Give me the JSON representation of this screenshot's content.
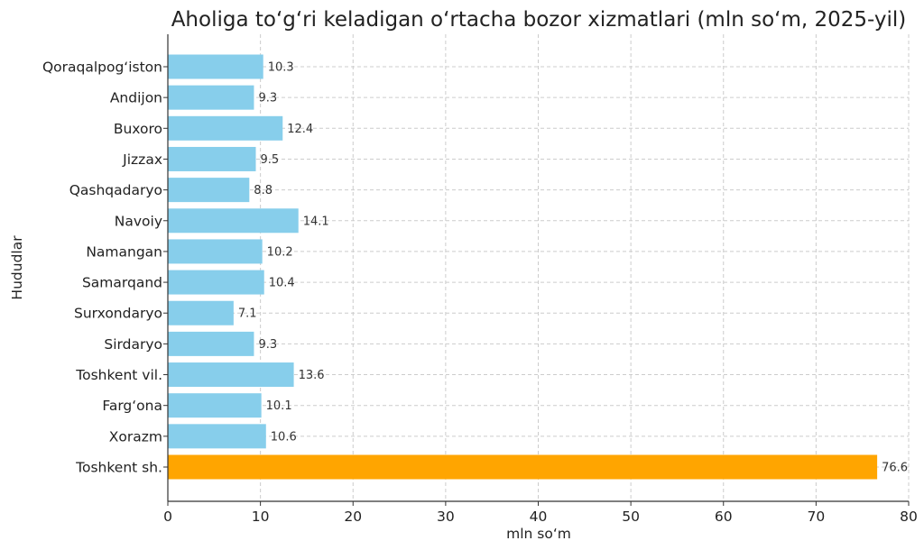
{
  "chart_data": {
    "type": "bar",
    "orientation": "horizontal",
    "title": "Aholiga to‘g‘ri keladigan o‘rtacha bozor xizmatlari (mln so‘m, 2025-yil)",
    "xlabel": "mln so‘m",
    "ylabel": "Hududlar",
    "xlim": [
      0,
      80
    ],
    "xticks": [
      0,
      10,
      20,
      30,
      40,
      50,
      60,
      70,
      80
    ],
    "grid": true,
    "categories": [
      "Qoraqalpog‘iston",
      "Andijon",
      "Buxoro",
      "Jizzax",
      "Qashqadaryo",
      "Navoiy",
      "Namangan",
      "Samarqand",
      "Surxondaryo",
      "Sirdaryo",
      "Toshkent vil.",
      "Farg‘ona",
      "Xorazm",
      "Toshkent sh."
    ],
    "values": [
      10.3,
      9.3,
      12.4,
      9.5,
      8.8,
      14.1,
      10.2,
      10.4,
      7.1,
      9.3,
      13.6,
      10.1,
      10.6,
      76.6
    ],
    "value_labels": [
      "10.3",
      "9.3",
      "12.4",
      "9.5",
      "8.8",
      "14.1",
      "10.2",
      "10.4",
      "7.1",
      "9.3",
      "13.6",
      "10.1",
      "10.6",
      "76.6"
    ],
    "colors": {
      "default_bar": "#87CEEB",
      "highlight_bar": "#FFA500",
      "highlight_category": "Toshkent sh."
    }
  }
}
